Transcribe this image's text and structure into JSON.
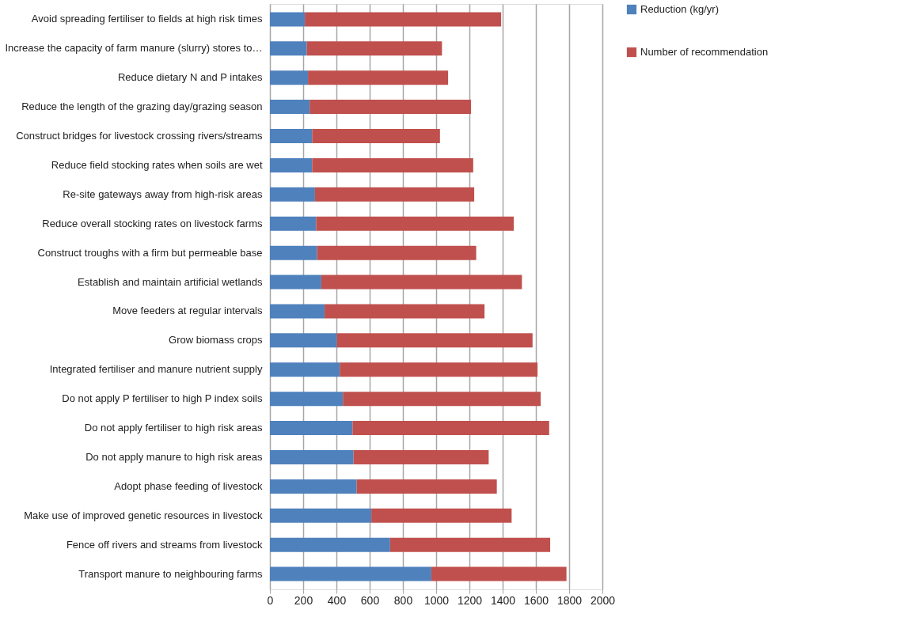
{
  "chart_data": {
    "type": "bar",
    "orientation": "horizontal",
    "stacked": true,
    "categories": [
      "Avoid spreading fertiliser to fields at high risk times",
      "Increase the capacity of farm manure (slurry) stores to…",
      "Reduce dietary N and P intakes",
      "Reduce the length of the grazing day/grazing season",
      "Construct bridges for livestock crossing rivers/streams",
      "Reduce field stocking rates when soils are wet",
      "Re-site gateways  away  from high-risk areas",
      "Reduce overall stocking rates on livestock farms",
      "Construct troughs with a firm but permeable base",
      "Establish and maintain  artificial wetlands",
      "Move feeders at regular intervals",
      "Grow biomass crops",
      "Integrated fertiliser and manure nutrient supply",
      "Do not apply P fertiliser to high P index soils",
      "Do not apply fertiliser to high risk areas",
      "Do not apply manure to high risk areas",
      "Adopt phase feeding of livestock",
      "Make use of improved genetic resources in livestock",
      "Fence off rivers and streams from livestock ",
      "Transport manure to neighbouring farms"
    ],
    "series": [
      {
        "name": "Reduction (kg/yr)",
        "color": "#4f81bd",
        "values": [
          210,
          222,
          229,
          239,
          254,
          254,
          271,
          278,
          284,
          309,
          329,
          403,
          420,
          439,
          497,
          503,
          522,
          610,
          723,
          971
        ]
      },
      {
        "name": "Number of recommendation",
        "color": "#c0504d",
        "values": [
          1181,
          813,
          843,
          971,
          769,
          969,
          958,
          1189,
          957,
          1207,
          962,
          1177,
          1190,
          1190,
          1183,
          813,
          843,
          844,
          963,
          813
        ]
      }
    ],
    "xlim": [
      0,
      2000
    ],
    "xticks": [
      0,
      200,
      400,
      600,
      800,
      1000,
      1200,
      1400,
      1600,
      1800,
      2000
    ],
    "grid": "x",
    "legend": "right"
  }
}
